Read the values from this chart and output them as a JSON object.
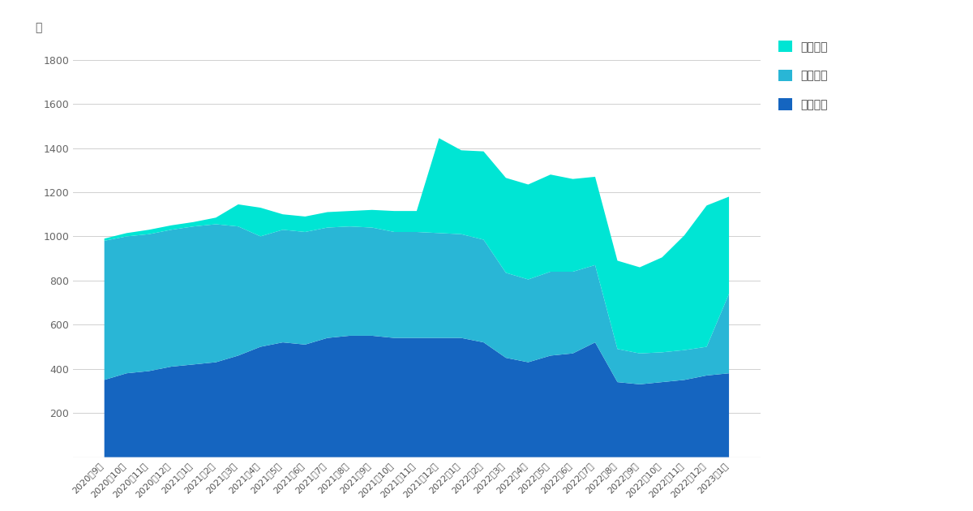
{
  "labels": [
    "2020年9月",
    "2020年10月",
    "2020年11月",
    "2020年12月",
    "2021年1月",
    "2021年2月",
    "2021年3月",
    "2021年4月",
    "2021年5月",
    "2021年6月",
    "2021年7月",
    "2021年8月",
    "2021年9月",
    "2021年10月",
    "2021年11月",
    "2021年12月",
    "2022年1月",
    "2022年2月",
    "2022年3月",
    "2022年4月",
    "2022年5月",
    "2022年6月",
    "2022年7月",
    "2022年8月",
    "2022年9月",
    "2022年10月",
    "2022年11月",
    "2022年12月",
    "2023年1月"
  ],
  "genkin": [
    350,
    380,
    390,
    410,
    420,
    430,
    460,
    500,
    520,
    510,
    540,
    550,
    550,
    540,
    540,
    540,
    540,
    520,
    450,
    430,
    460,
    470,
    520,
    340,
    330,
    340,
    350,
    370,
    380
  ],
  "hoken": [
    630,
    620,
    620,
    620,
    625,
    625,
    585,
    500,
    510,
    510,
    500,
    495,
    490,
    480,
    480,
    475,
    470,
    465,
    385,
    375,
    380,
    370,
    350,
    150,
    140,
    135,
    135,
    130,
    360
  ],
  "toshi": [
    10,
    15,
    20,
    20,
    20,
    30,
    100,
    130,
    70,
    70,
    70,
    70,
    80,
    95,
    95,
    430,
    380,
    400,
    430,
    430,
    440,
    420,
    400,
    400,
    390,
    430,
    520,
    640,
    440
  ],
  "colors": {
    "genkin": "#1565c0",
    "hoken": "#29b6d6",
    "toshi": "#00e5d4"
  },
  "legend_labels": [
    "投資合計",
    "保険合計",
    "現金合計"
  ],
  "ylabel": "万",
  "yticks": [
    0,
    200,
    400,
    600,
    800,
    1000,
    1200,
    1400,
    1600,
    1800
  ],
  "ylim": [
    0,
    1900
  ],
  "background_color": "#ffffff",
  "grid_color": "#d0d0d0"
}
